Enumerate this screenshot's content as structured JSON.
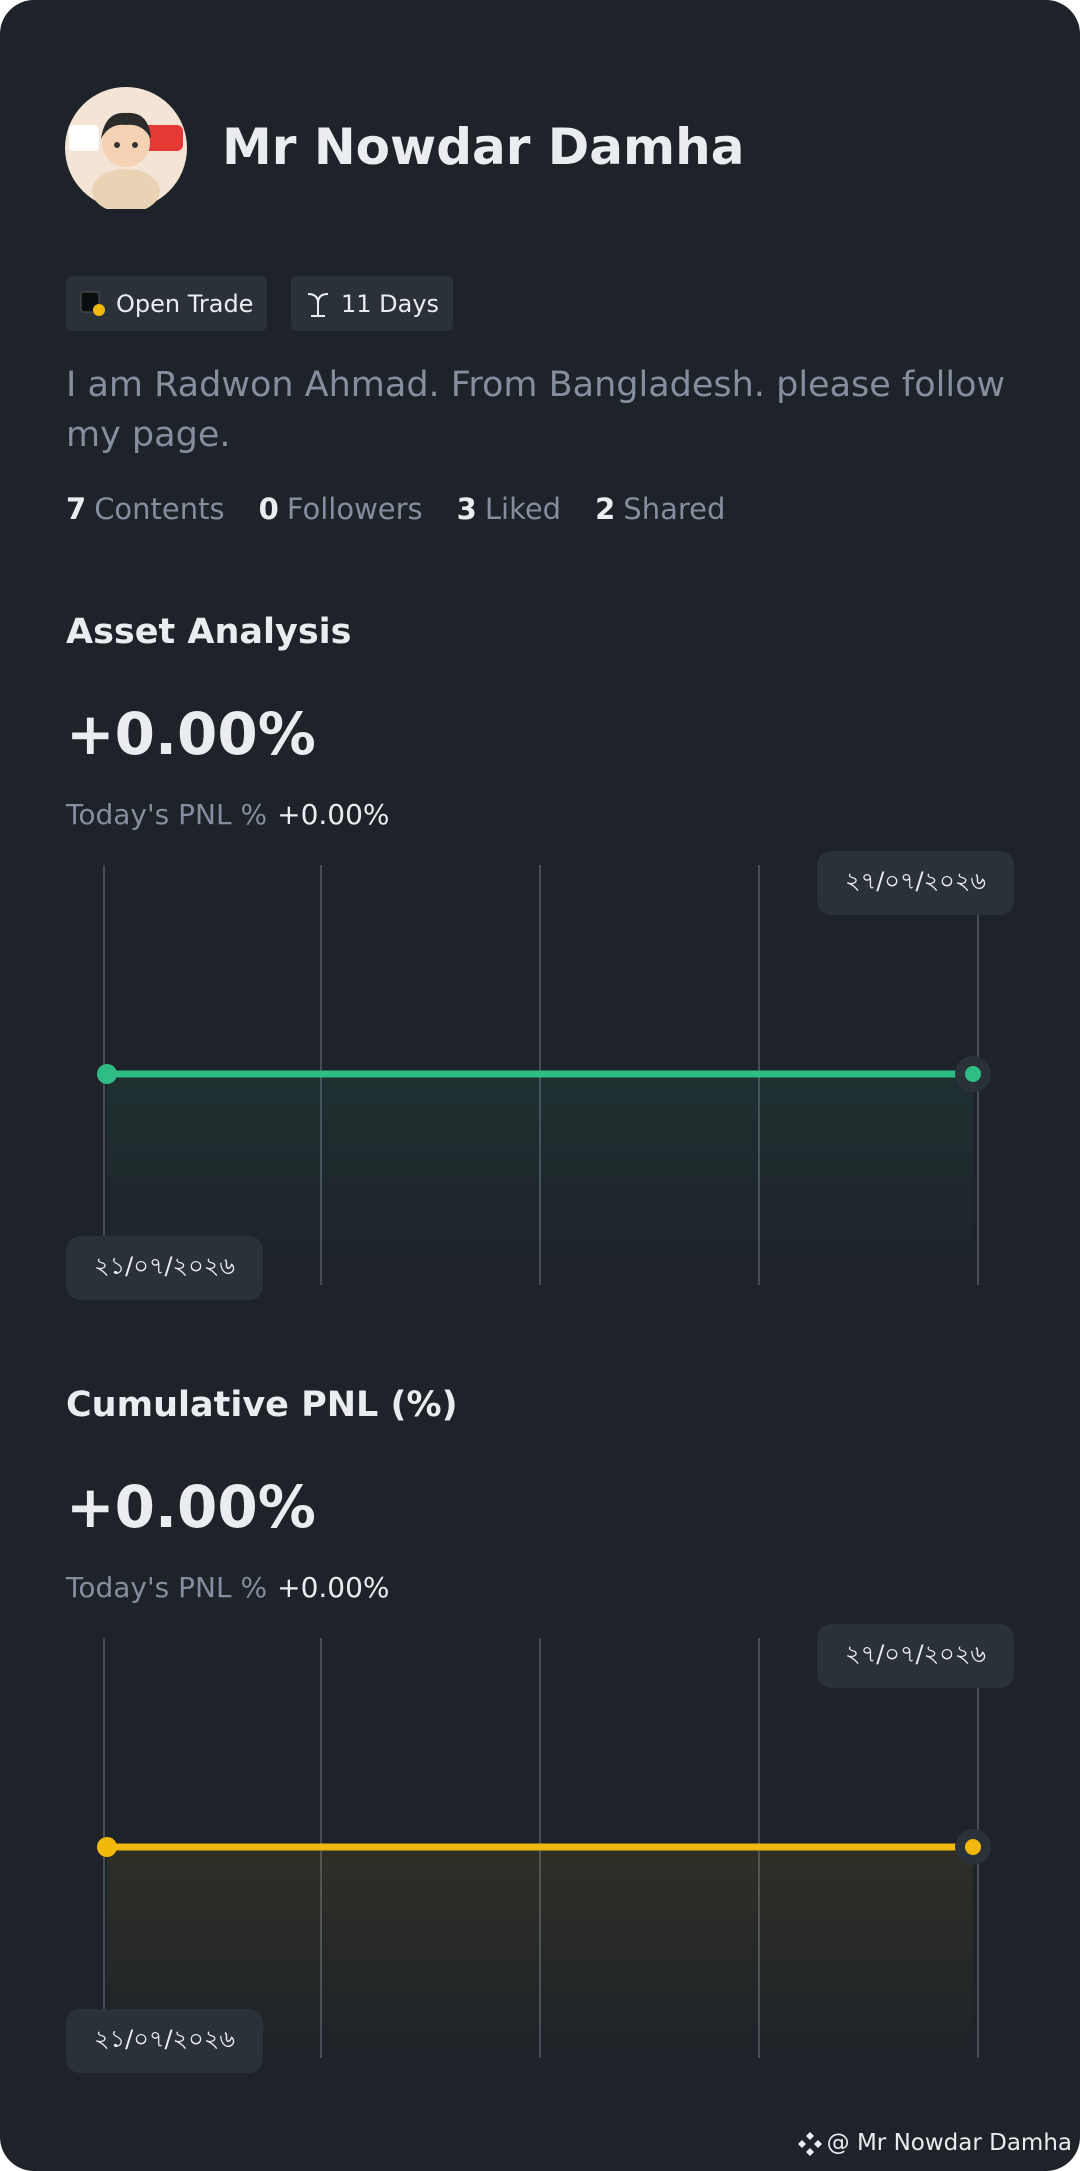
{
  "profile": {
    "name": "Mr Nowdar Damha",
    "tags": [
      "Open Trade",
      "11 Days"
    ],
    "bio": "I am Radwon Ahmad. From Bangladesh. please follow my page.",
    "stats": [
      {
        "value": 7,
        "label": "Contents"
      },
      {
        "value": 0,
        "label": "Followers"
      },
      {
        "value": 3,
        "label": "Liked"
      },
      {
        "value": 2,
        "label": "Shared"
      }
    ]
  },
  "sections": [
    {
      "title": "Asset Analysis",
      "pnl": "+0.00%",
      "today_label": "Today's PNL %",
      "today_value": "+0.00%",
      "chart": {
        "type": "line",
        "dates": [
          "২১/০৭/২০২৬",
          "২৭/০৭/২০২৬"
        ],
        "values": [
          0,
          0
        ],
        "color": "#2ebd85"
      }
    },
    {
      "title": "Cumulative PNL (%)",
      "pnl": "+0.00%",
      "today_label": "Today's PNL %",
      "today_value": "+0.00%",
      "chart": {
        "type": "line",
        "dates": [
          "২১/০৭/২০২৬",
          "২৭/০৭/২০২৬"
        ],
        "values": [
          0,
          0
        ],
        "color": "#f0b90b"
      }
    }
  ],
  "footer": "@ Mr Nowdar Damha"
}
